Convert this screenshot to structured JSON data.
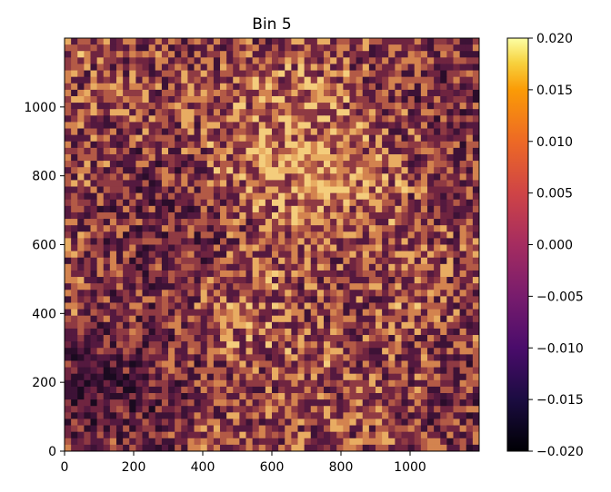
{
  "chart_data": {
    "type": "heatmap",
    "title": "Bin 5",
    "xlabel": "",
    "ylabel": "",
    "xlim": [
      0,
      1200
    ],
    "ylim": [
      0,
      1200
    ],
    "x_ticks": [
      0,
      200,
      400,
      600,
      800,
      1000
    ],
    "y_ticks": [
      0,
      200,
      400,
      600,
      800,
      1000
    ],
    "colormap": "inferno",
    "colorbar": {
      "min": -0.02,
      "max": 0.02,
      "ticks": [
        "0.020",
        "0.015",
        "0.010",
        "0.005",
        "0.000",
        "−0.005",
        "−0.010",
        "−0.015",
        "−0.020"
      ]
    },
    "colors": {
      "high": "#fcffa4",
      "mid": "#bc3754",
      "low": "#000004"
    }
  }
}
